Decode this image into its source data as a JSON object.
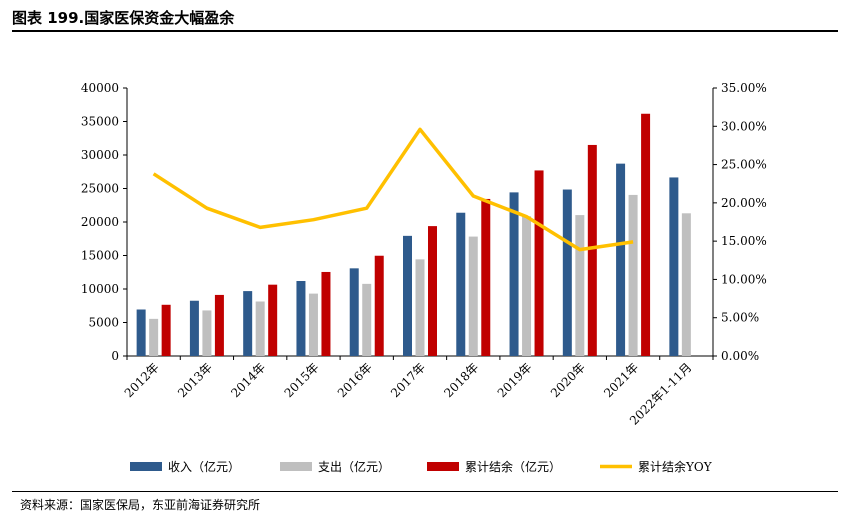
{
  "header": {
    "title": "图表 199.国家医保资金大幅盈余"
  },
  "footer": {
    "source": "资料来源：国家医保局，东亚前海证券研究所"
  },
  "chart_data": {
    "type": "bar",
    "categories": [
      "2012年",
      "2013年",
      "2014年",
      "2015年",
      "2016年",
      "2017年",
      "2018年",
      "2019年",
      "2020年",
      "2021年",
      "2022年1-11月"
    ],
    "series": [
      {
        "name": "收入（亿元）",
        "axis": "left",
        "kind": "bar",
        "color": "#2E5A8C",
        "values": [
          6939,
          8248,
          9687,
          11193,
          13084,
          17932,
          21384,
          24421,
          24846,
          28710,
          26650
        ]
      },
      {
        "name": "支出（亿元）",
        "axis": "left",
        "kind": "bar",
        "color": "#BFBFBF",
        "values": [
          5544,
          6801,
          8134,
          9312,
          10767,
          14422,
          17822,
          20854,
          21032,
          24043,
          21300
        ]
      },
      {
        "name": "累计结余（亿元）",
        "axis": "left",
        "kind": "bar",
        "color": "#C00000",
        "values": [
          7644,
          9116,
          10645,
          12543,
          14964,
          19386,
          23440,
          27697,
          31500,
          36156,
          null
        ]
      },
      {
        "name": "累计结余YOY",
        "axis": "right",
        "kind": "line",
        "color": "#FFC000",
        "values": [
          0.238,
          0.193,
          0.168,
          0.178,
          0.193,
          0.296,
          0.209,
          0.182,
          0.139,
          0.149,
          null
        ]
      }
    ],
    "yleft": {
      "min": 0,
      "max": 40000,
      "ticks": [
        "0",
        "5000",
        "10000",
        "15000",
        "20000",
        "25000",
        "30000",
        "35000",
        "40000"
      ]
    },
    "yright": {
      "min": 0,
      "max": 0.35,
      "ticks": [
        "0.00%",
        "5.00%",
        "10.00%",
        "15.00%",
        "20.00%",
        "25.00%",
        "30.00%",
        "35.00%"
      ]
    },
    "legend_position": "bottom",
    "grid": false
  }
}
